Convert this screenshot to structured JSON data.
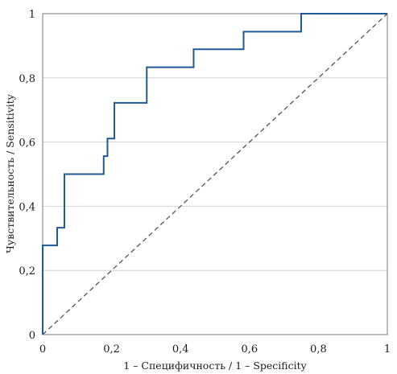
{
  "chart_data": {
    "type": "line",
    "xlabel": "1 – Специфичность / 1 – Specificity",
    "ylabel": "Чувствительность / Sensitivity",
    "xlim": [
      0,
      1
    ],
    "ylim": [
      0,
      1
    ],
    "x_ticks": [
      "0",
      "0,2",
      "0,4",
      "0,6",
      "0,8",
      "1"
    ],
    "y_ticks": [
      "0",
      "0,2",
      "0,4",
      "0,6",
      "0,8",
      "1"
    ],
    "x_tick_values": [
      0,
      0.2,
      0.4,
      0.6,
      0.8,
      1
    ],
    "y_tick_values": [
      0,
      0.2,
      0.4,
      0.6,
      0.8,
      1
    ],
    "grid": "horizontal",
    "series": [
      {
        "x": [
          0,
          0,
          0.042,
          0.042,
          0.063,
          0.063,
          0.177,
          0.177,
          0.188,
          0.188,
          0.208,
          0.208,
          0.302,
          0.302,
          0.396,
          0.396,
          0.438,
          0.438,
          0.583,
          0.583,
          0.75,
          0.75,
          1
        ],
        "y": [
          0,
          0.278,
          0.278,
          0.333,
          0.333,
          0.5,
          0.5,
          0.556,
          0.556,
          0.611,
          0.611,
          0.722,
          0.722,
          0.833,
          0.833,
          0.833,
          0.833,
          0.889,
          0.889,
          0.944,
          0.944,
          1,
          1
        ],
        "color": "#1f5a96"
      },
      {
        "x": [
          0,
          1
        ],
        "y": [
          0,
          1
        ],
        "color": "#555555",
        "style": "dashed"
      }
    ]
  }
}
